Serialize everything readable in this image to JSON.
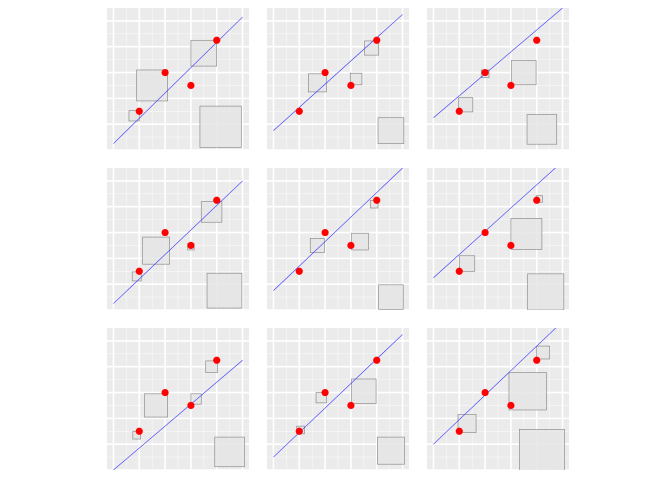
{
  "colors": {
    "panel_bg": "#ebebeb",
    "grid_major": "#ffffff",
    "point": "#ff0000",
    "fit_line": "#3333ff",
    "square_fill": "#e5e5e5",
    "square_stroke": "#808080"
  },
  "chart_data": [
    {
      "type": "scatter",
      "grid": true,
      "points": [
        {
          "x": 2,
          "y": 3
        },
        {
          "x": 4,
          "y": 6
        },
        {
          "x": 6,
          "y": 5
        },
        {
          "x": 8,
          "y": 8.5
        }
      ],
      "fit_line": {
        "intercept": 0.5,
        "slope": 0.98
      },
      "squares": [
        {
          "cx": 1.6,
          "cy": 2.65,
          "half": 0.4
        },
        {
          "cx": 3.0,
          "cy": 5.0,
          "half": 1.2
        },
        {
          "cx": 7.0,
          "cy": 7.5,
          "half": 1.0
        },
        {
          "cx": 8.3,
          "cy": 1.8,
          "half": 1.6
        }
      ]
    },
    {
      "type": "scatter",
      "grid": true,
      "points": [
        {
          "x": 2,
          "y": 3
        },
        {
          "x": 4,
          "y": 6
        },
        {
          "x": 6,
          "y": 5
        },
        {
          "x": 8,
          "y": 8.5
        }
      ],
      "fit_line": {
        "intercept": 1.5,
        "slope": 0.9
      },
      "squares": [
        {
          "cx": 3.4,
          "cy": 5.2,
          "half": 0.7
        },
        {
          "cx": 6.4,
          "cy": 5.5,
          "half": 0.45
        },
        {
          "cx": 7.6,
          "cy": 7.9,
          "half": 0.55
        },
        {
          "cx": 9.1,
          "cy": 1.5,
          "half": 1.0
        }
      ]
    },
    {
      "type": "scatter",
      "grid": true,
      "points": [
        {
          "x": 2,
          "y": 3
        },
        {
          "x": 4,
          "y": 6
        },
        {
          "x": 6,
          "y": 5
        },
        {
          "x": 8,
          "y": 8.5
        }
      ],
      "fit_line": {
        "intercept": 2.5,
        "slope": 0.85
      },
      "squares": [
        {
          "cx": 2.5,
          "cy": 3.5,
          "half": 0.55
        },
        {
          "cx": 4.0,
          "cy": 5.9,
          "half": 0.3
        },
        {
          "cx": 7.0,
          "cy": 6.0,
          "half": 0.95
        },
        {
          "cx": 8.4,
          "cy": 1.6,
          "half": 1.15
        }
      ]
    },
    {
      "type": "scatter",
      "grid": true,
      "points": [
        {
          "x": 2,
          "y": 3
        },
        {
          "x": 4,
          "y": 6
        },
        {
          "x": 6,
          "y": 5
        },
        {
          "x": 8,
          "y": 8.5
        }
      ],
      "fit_line": {
        "intercept": 0.5,
        "slope": 0.95
      },
      "squares": [
        {
          "cx": 1.8,
          "cy": 2.6,
          "half": 0.35
        },
        {
          "cx": 3.3,
          "cy": 4.6,
          "half": 1.05
        },
        {
          "cx": 6.0,
          "cy": 4.9,
          "half": 0.25
        },
        {
          "cx": 7.6,
          "cy": 7.6,
          "half": 0.8
        },
        {
          "cx": 8.6,
          "cy": 1.5,
          "half": 1.35
        }
      ]
    },
    {
      "type": "scatter",
      "grid": true,
      "points": [
        {
          "x": 2,
          "y": 3
        },
        {
          "x": 4,
          "y": 6
        },
        {
          "x": 6,
          "y": 5
        },
        {
          "x": 8,
          "y": 8.5
        }
      ],
      "fit_line": {
        "intercept": 1.5,
        "slope": 0.95
      },
      "squares": [
        {
          "cx": 3.4,
          "cy": 5.0,
          "half": 0.55
        },
        {
          "cx": 6.7,
          "cy": 5.3,
          "half": 0.65
        },
        {
          "cx": 7.8,
          "cy": 8.2,
          "half": 0.3
        },
        {
          "cx": 9.1,
          "cy": 1.0,
          "half": 0.95
        }
      ]
    },
    {
      "type": "scatter",
      "grid": true,
      "points": [
        {
          "x": 2,
          "y": 3
        },
        {
          "x": 4,
          "y": 6
        },
        {
          "x": 6,
          "y": 5
        },
        {
          "x": 8,
          "y": 8.5
        }
      ],
      "fit_line": {
        "intercept": 2.5,
        "slope": 0.9
      },
      "squares": [
        {
          "cx": 2.6,
          "cy": 3.6,
          "half": 0.6
        },
        {
          "cx": 7.2,
          "cy": 5.9,
          "half": 1.2
        },
        {
          "cx": 8.2,
          "cy": 8.6,
          "half": 0.25
        },
        {
          "cx": 8.7,
          "cy": 1.4,
          "half": 1.4
        }
      ]
    },
    {
      "type": "scatter",
      "grid": true,
      "points": [
        {
          "x": 2,
          "y": 3
        },
        {
          "x": 4,
          "y": 6
        },
        {
          "x": 6,
          "y": 5
        },
        {
          "x": 8,
          "y": 8.5
        }
      ],
      "fit_line": {
        "intercept": 0.0,
        "slope": 0.85
      },
      "squares": [
        {
          "cx": 1.8,
          "cy": 2.7,
          "half": 0.3
        },
        {
          "cx": 3.3,
          "cy": 5.0,
          "half": 0.9
        },
        {
          "cx": 6.4,
          "cy": 5.5,
          "half": 0.4
        },
        {
          "cx": 7.6,
          "cy": 8.0,
          "half": 0.45
        },
        {
          "cx": 9.0,
          "cy": 1.4,
          "half": 1.15
        }
      ]
    },
    {
      "type": "scatter",
      "grid": true,
      "points": [
        {
          "x": 2,
          "y": 3
        },
        {
          "x": 4,
          "y": 6
        },
        {
          "x": 6,
          "y": 5
        },
        {
          "x": 8,
          "y": 8.5
        }
      ],
      "fit_line": {
        "intercept": 1.0,
        "slope": 0.95
      },
      "squares": [
        {
          "cx": 2.1,
          "cy": 3.1,
          "half": 0.3
        },
        {
          "cx": 3.7,
          "cy": 5.6,
          "half": 0.4
        },
        {
          "cx": 7.0,
          "cy": 6.1,
          "half": 0.95
        },
        {
          "cx": 9.1,
          "cy": 1.5,
          "half": 1.05
        }
      ]
    },
    {
      "type": "scatter",
      "grid": true,
      "points": [
        {
          "x": 2,
          "y": 3
        },
        {
          "x": 4,
          "y": 6
        },
        {
          "x": 6,
          "y": 5
        },
        {
          "x": 8,
          "y": 8.5
        }
      ],
      "fit_line": {
        "intercept": 2.0,
        "slope": 0.95
      },
      "squares": [
        {
          "cx": 2.6,
          "cy": 3.6,
          "half": 0.7
        },
        {
          "cx": 7.3,
          "cy": 6.1,
          "half": 1.45
        },
        {
          "cx": 8.5,
          "cy": 9.1,
          "half": 0.5
        },
        {
          "cx": 8.4,
          "cy": 1.4,
          "half": 1.75
        }
      ]
    }
  ]
}
